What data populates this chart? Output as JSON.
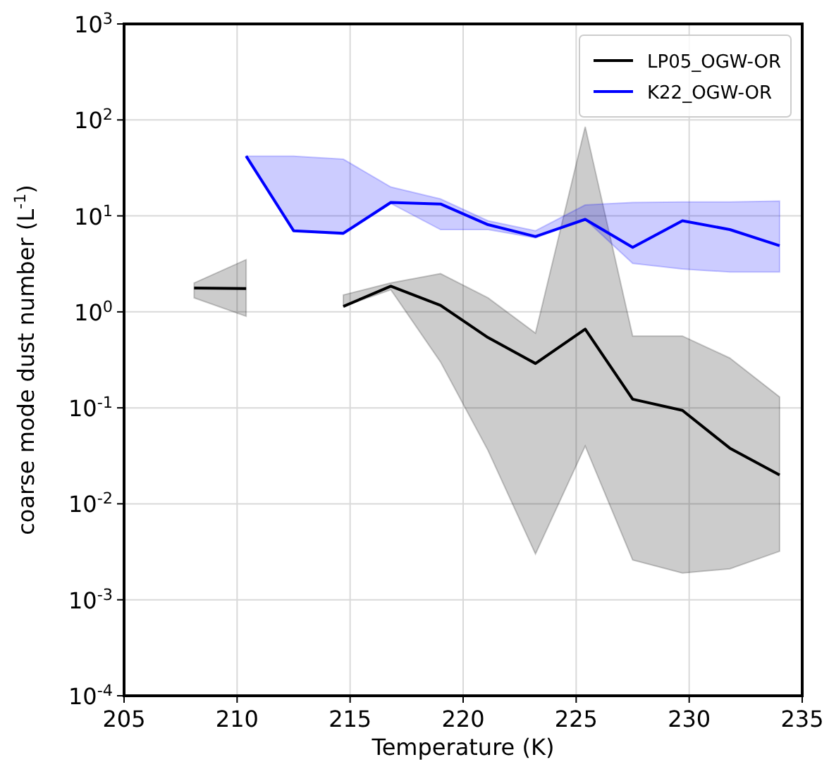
{
  "chart_data": {
    "type": "line",
    "xlabel": "Temperature (K)",
    "ylabel": "coarse mode dust number (L$^{-1}$)",
    "x": [
      208.1,
      210.4,
      212.5,
      214.7,
      216.8,
      219.0,
      221.1,
      223.2,
      225.4,
      227.5,
      229.7,
      231.8,
      234.0
    ],
    "series": [
      {
        "name": "LP05_OGW-OR",
        "color": "#000000",
        "values": [
          1.77,
          1.75,
          null,
          1.14,
          1.85,
          1.17,
          0.54,
          0.29,
          0.66,
          0.123,
          0.094,
          0.038,
          0.02
        ],
        "lower": [
          1.4,
          0.9,
          null,
          1.14,
          1.7,
          0.3,
          0.036,
          0.003,
          0.04,
          0.0026,
          0.0019,
          0.0021,
          0.0032
        ],
        "upper": [
          2.0,
          3.5,
          null,
          1.5,
          2.0,
          2.5,
          1.4,
          0.6,
          85,
          0.56,
          0.56,
          0.33,
          0.13
        ]
      },
      {
        "name": "K22_OGW-OR",
        "color": "#0000ff",
        "values": [
          null,
          42,
          7.0,
          6.6,
          13.8,
          13.3,
          8.1,
          6.1,
          9.2,
          4.7,
          8.9,
          7.2,
          4.9
        ],
        "lower": [
          null,
          42,
          7.0,
          6.4,
          13.5,
          7.2,
          7.2,
          5.9,
          9.2,
          3.2,
          2.8,
          2.6,
          2.6
        ],
        "upper": [
          null,
          42,
          42,
          39,
          20,
          15,
          8.9,
          7.0,
          13,
          13.8,
          14,
          14,
          14.3
        ]
      }
    ],
    "xlim": [
      205,
      235
    ],
    "xticks": [
      205,
      210,
      215,
      220,
      225,
      230,
      235
    ],
    "ylim": [
      0.0001,
      1000
    ],
    "yticks": [
      {
        "value": 0.0001,
        "label": "10$^{-4}$"
      },
      {
        "value": 0.001,
        "label": "10$^{-3}$"
      },
      {
        "value": 0.01,
        "label": "10$^{-2}$"
      },
      {
        "value": 0.1,
        "label": "10$^{-1}$"
      },
      {
        "value": 1,
        "label": "10$^{0}$"
      },
      {
        "value": 10,
        "label": "10$^{1}$"
      },
      {
        "value": 100,
        "label": "10$^{2}$"
      },
      {
        "value": 1000,
        "label": "10$^{3}$"
      }
    ],
    "log": true,
    "grid": true,
    "legend": "top right",
    "line_style": "solid"
  }
}
